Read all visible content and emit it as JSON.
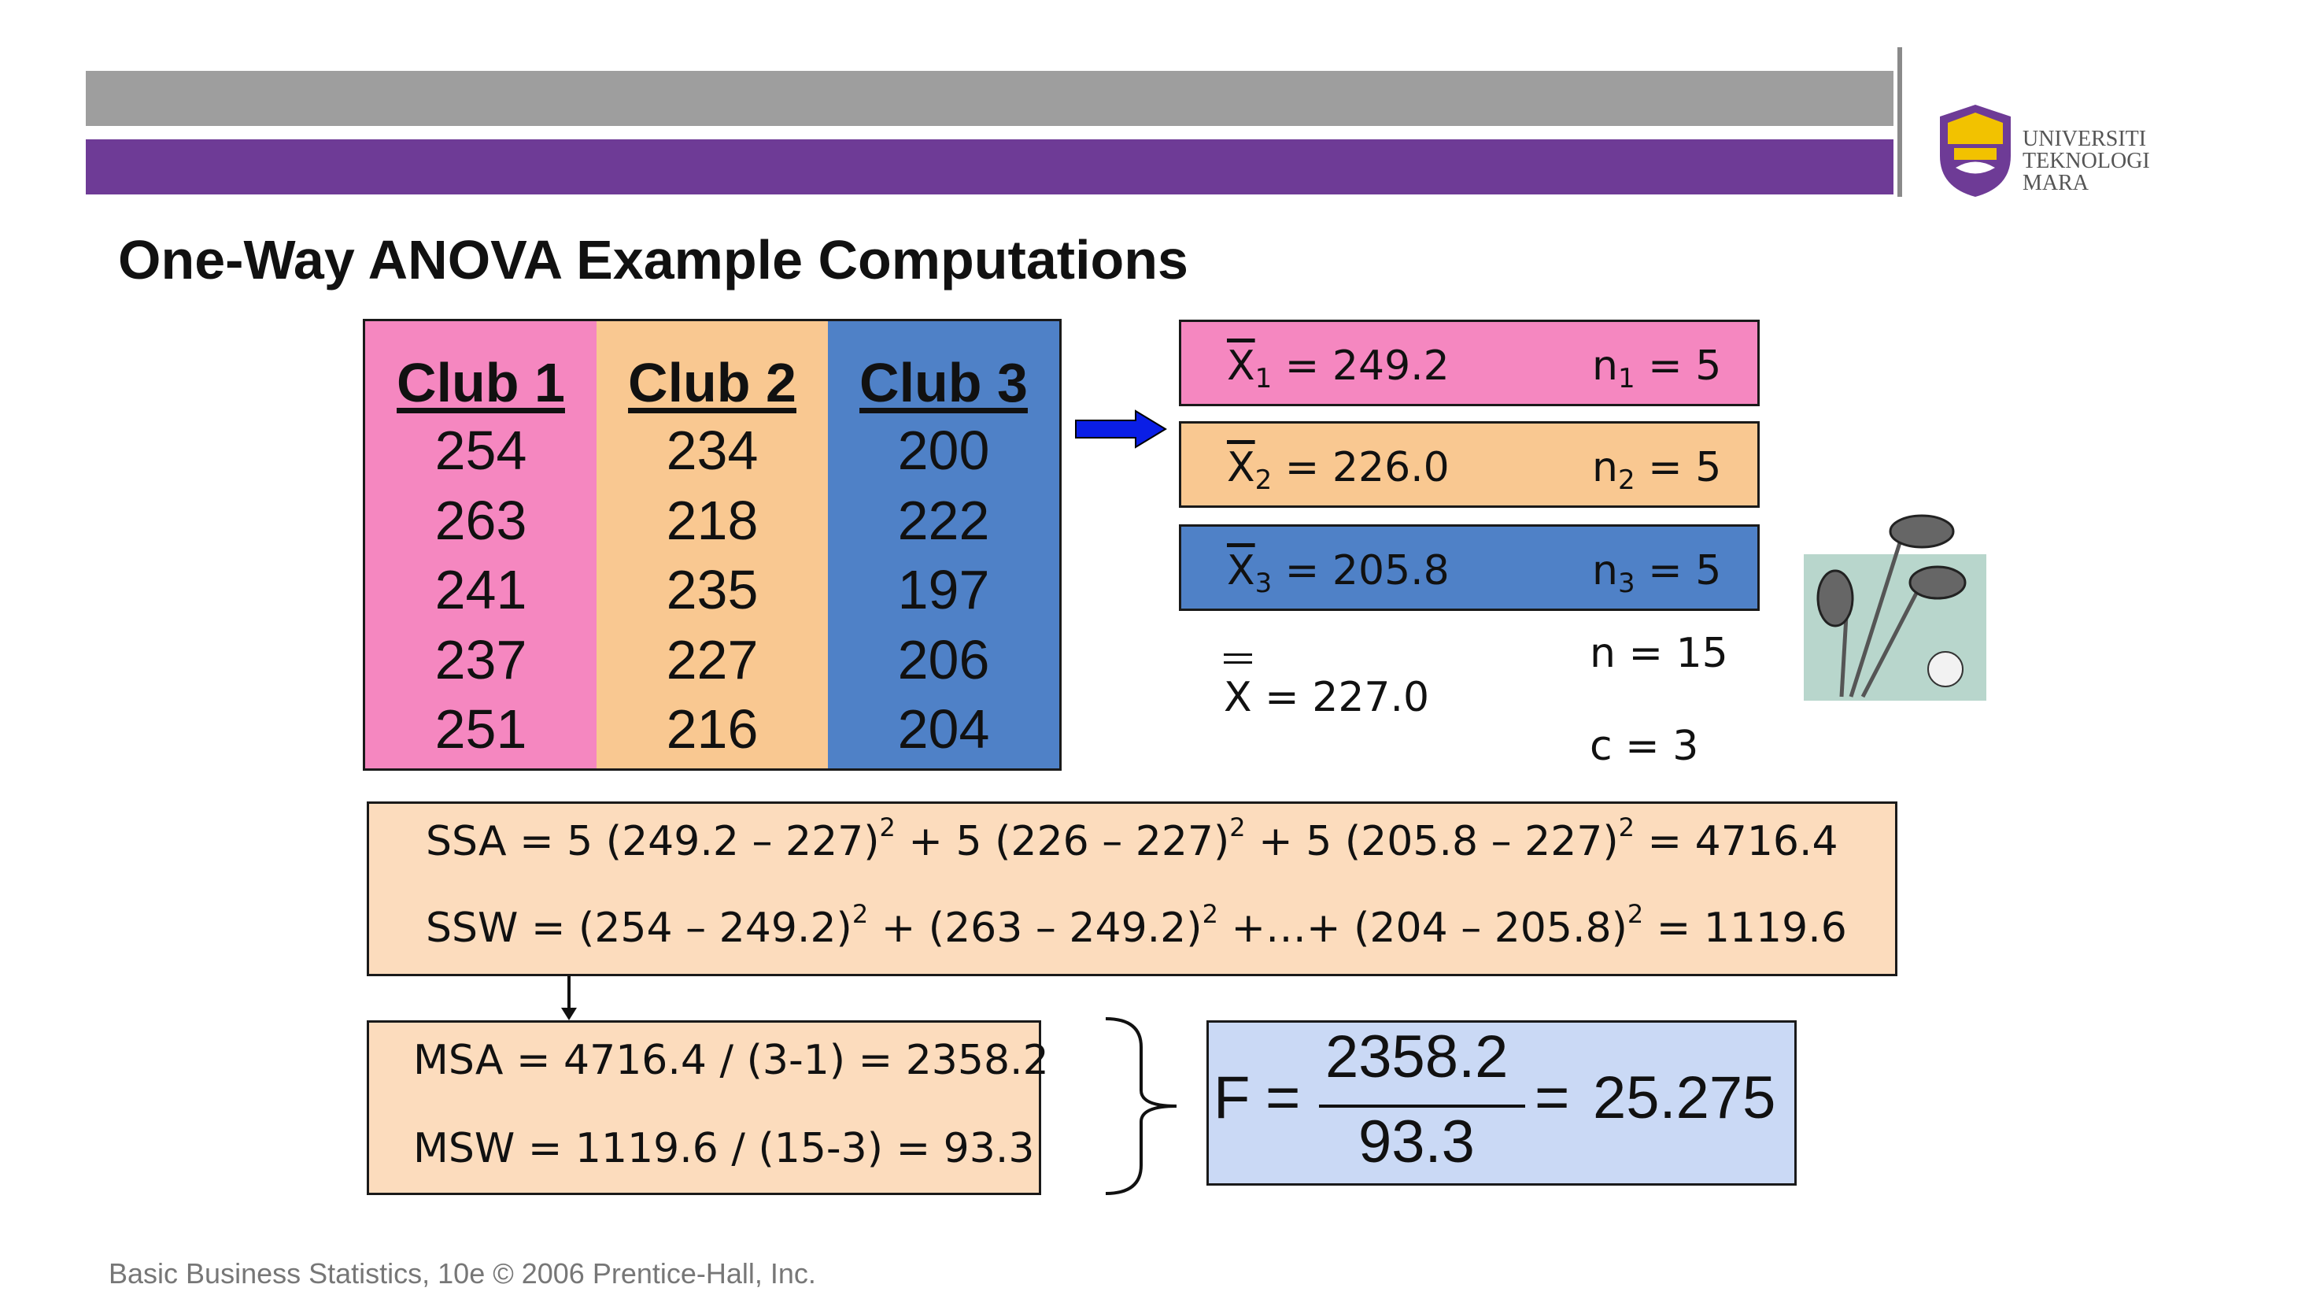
{
  "title": "One-Way ANOVA Example Computations",
  "logo": {
    "lines": [
      "UNIVERSITI",
      "TEKNOLOGI",
      "MARA"
    ]
  },
  "table": {
    "headers": [
      "Club 1",
      "Club 2",
      "Club 3"
    ],
    "club1": [
      "254",
      "263",
      "241",
      "237",
      "251"
    ],
    "club2": [
      "234",
      "218",
      "235",
      "227",
      "216"
    ],
    "club3": [
      "200",
      "222",
      "197",
      "206",
      "204"
    ]
  },
  "means": [
    {
      "sym": "X",
      "sub": "1",
      "value": " = 249.2",
      "n_sym": "n",
      "n_sub": "1",
      "n_value": " = 5"
    },
    {
      "sym": "X",
      "sub": "2",
      "value": " = 226.0",
      "n_sym": "n",
      "n_sub": "2",
      "n_value": " = 5"
    },
    {
      "sym": "X",
      "sub": "3",
      "value": " = 205.8",
      "n_sym": "n",
      "n_sub": "3",
      "n_value": " = 5"
    }
  ],
  "grand_mean": "X = 227.0",
  "n_total": "n = 15",
  "c_groups": "c = 3",
  "ssa": {
    "p1": "SSA =  5 (249.2 – 227)",
    "e1": "2",
    "p2": " + 5 (226 – 227)",
    "e2": "2",
    "p3": " + 5 (205.8 – 227)",
    "e3": "2",
    "p4": "  = 4716.4"
  },
  "ssw": {
    "p1": "SSW =  (254 – 249.2)",
    "e1": "2",
    "p2": " + (263 – 249.2)",
    "e2": "2",
    "p3": " +…+ (204 – 205.8)",
    "e3": "2",
    "p4": " = 1119.6"
  },
  "msa": "MSA = 4716.4 / (3-1) = 2358.2",
  "msw": "MSW = 1119.6 / (15-3) = 93.3",
  "f_stat": {
    "label": "F",
    "eq": "=",
    "numerator": "2358.2",
    "denominator": "93.3",
    "eq2": "=",
    "result": "25.275"
  },
  "footer": "Basic Business Statistics, 10e © 2006 Prentice-Hall, Inc.",
  "colors": {
    "pink": "#f587c0",
    "orange": "#f9c891",
    "blue": "#4f81c7",
    "purple": "#6e3b96",
    "peach": "#fcdcbd",
    "lightblue": "#cad9f5"
  }
}
